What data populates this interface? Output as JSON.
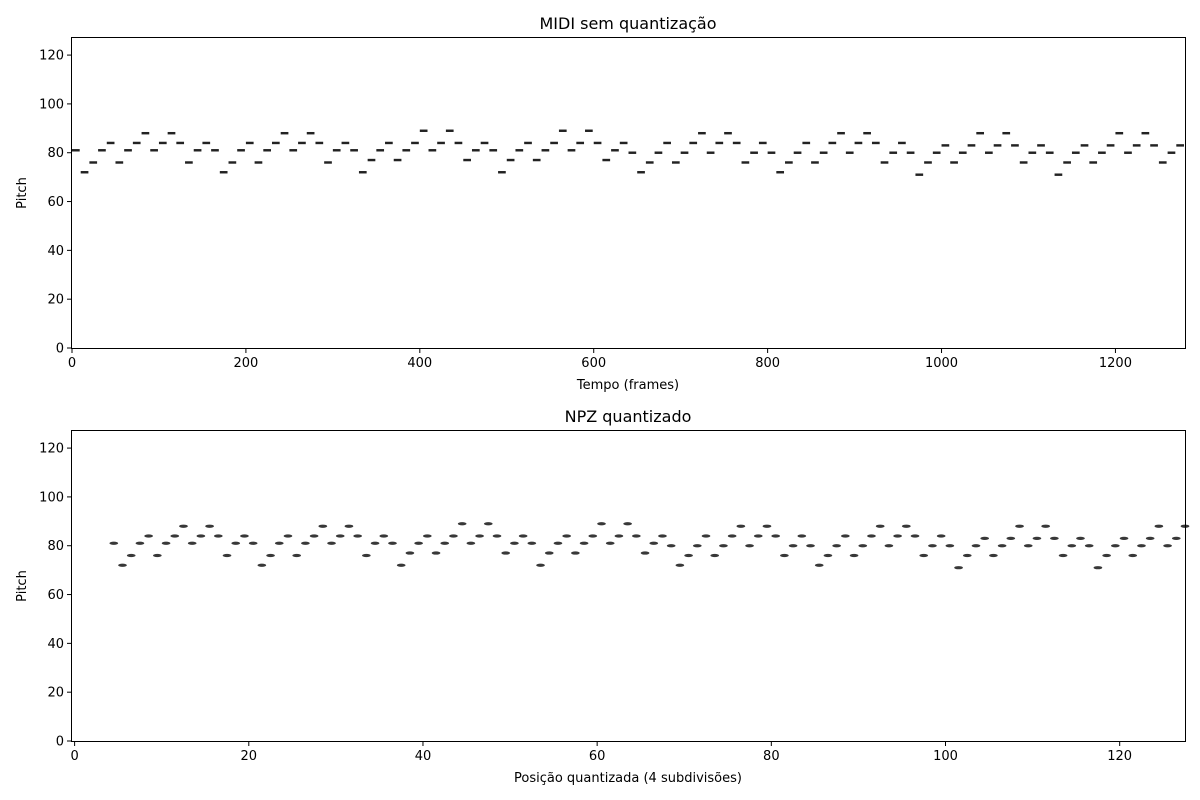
{
  "chart_data": [
    {
      "type": "heatmap",
      "title": "MIDI sem quantização",
      "xlabel": "Tempo (frames)",
      "ylabel": "Pitch",
      "xlim": [
        0,
        1280
      ],
      "ylim": [
        0,
        127
      ],
      "xticks": [
        "0",
        "200",
        "400",
        "600",
        "800",
        "1000",
        "1200"
      ],
      "yticks": [
        "0",
        "20",
        "40",
        "60",
        "80",
        "100",
        "120"
      ],
      "note_length": 10,
      "note_color": "#222222",
      "notes": [
        [
          0,
          81
        ],
        [
          10,
          72
        ],
        [
          20,
          76
        ],
        [
          30,
          81
        ],
        [
          40,
          84
        ],
        [
          50,
          76
        ],
        [
          60,
          81
        ],
        [
          70,
          84
        ],
        [
          80,
          88
        ],
        [
          90,
          81
        ],
        [
          100,
          84
        ],
        [
          110,
          88
        ],
        [
          120,
          84
        ],
        [
          130,
          76
        ],
        [
          140,
          81
        ],
        [
          150,
          84
        ],
        [
          160,
          81
        ],
        [
          170,
          72
        ],
        [
          180,
          76
        ],
        [
          190,
          81
        ],
        [
          200,
          84
        ],
        [
          210,
          76
        ],
        [
          220,
          81
        ],
        [
          230,
          84
        ],
        [
          240,
          88
        ],
        [
          250,
          81
        ],
        [
          260,
          84
        ],
        [
          270,
          88
        ],
        [
          280,
          84
        ],
        [
          290,
          76
        ],
        [
          300,
          81
        ],
        [
          310,
          84
        ],
        [
          320,
          81
        ],
        [
          330,
          72
        ],
        [
          340,
          77
        ],
        [
          350,
          81
        ],
        [
          360,
          84
        ],
        [
          370,
          77
        ],
        [
          380,
          81
        ],
        [
          390,
          84
        ],
        [
          400,
          89
        ],
        [
          410,
          81
        ],
        [
          420,
          84
        ],
        [
          430,
          89
        ],
        [
          440,
          84
        ],
        [
          450,
          77
        ],
        [
          460,
          81
        ],
        [
          470,
          84
        ],
        [
          480,
          81
        ],
        [
          490,
          72
        ],
        [
          500,
          77
        ],
        [
          510,
          81
        ],
        [
          520,
          84
        ],
        [
          530,
          77
        ],
        [
          540,
          81
        ],
        [
          550,
          84
        ],
        [
          560,
          89
        ],
        [
          570,
          81
        ],
        [
          580,
          84
        ],
        [
          590,
          89
        ],
        [
          600,
          84
        ],
        [
          610,
          77
        ],
        [
          620,
          81
        ],
        [
          630,
          84
        ],
        [
          640,
          80
        ],
        [
          650,
          72
        ],
        [
          660,
          76
        ],
        [
          670,
          80
        ],
        [
          680,
          84
        ],
        [
          690,
          76
        ],
        [
          700,
          80
        ],
        [
          710,
          84
        ],
        [
          720,
          88
        ],
        [
          730,
          80
        ],
        [
          740,
          84
        ],
        [
          750,
          88
        ],
        [
          760,
          84
        ],
        [
          770,
          76
        ],
        [
          780,
          80
        ],
        [
          790,
          84
        ],
        [
          800,
          80
        ],
        [
          810,
          72
        ],
        [
          820,
          76
        ],
        [
          830,
          80
        ],
        [
          840,
          84
        ],
        [
          850,
          76
        ],
        [
          860,
          80
        ],
        [
          870,
          84
        ],
        [
          880,
          88
        ],
        [
          890,
          80
        ],
        [
          900,
          84
        ],
        [
          910,
          88
        ],
        [
          920,
          84
        ],
        [
          930,
          76
        ],
        [
          940,
          80
        ],
        [
          950,
          84
        ],
        [
          960,
          80
        ],
        [
          970,
          71
        ],
        [
          980,
          76
        ],
        [
          990,
          80
        ],
        [
          1000,
          83
        ],
        [
          1010,
          76
        ],
        [
          1020,
          80
        ],
        [
          1030,
          83
        ],
        [
          1040,
          88
        ],
        [
          1050,
          80
        ],
        [
          1060,
          83
        ],
        [
          1070,
          88
        ],
        [
          1080,
          83
        ],
        [
          1090,
          76
        ],
        [
          1100,
          80
        ],
        [
          1110,
          83
        ],
        [
          1120,
          80
        ],
        [
          1130,
          71
        ],
        [
          1140,
          76
        ],
        [
          1150,
          80
        ],
        [
          1160,
          83
        ],
        [
          1170,
          76
        ],
        [
          1180,
          80
        ],
        [
          1190,
          83
        ],
        [
          1200,
          88
        ],
        [
          1210,
          80
        ],
        [
          1220,
          83
        ],
        [
          1230,
          88
        ],
        [
          1240,
          83
        ],
        [
          1250,
          76
        ],
        [
          1260,
          80
        ],
        [
          1270,
          83
        ]
      ]
    },
    {
      "type": "heatmap",
      "title": "NPZ quantizado",
      "xlabel": "Posição quantizada (4 subdivisões)",
      "ylabel": "Pitch",
      "xlim": [
        -0.3,
        127.5
      ],
      "ylim": [
        0,
        127
      ],
      "xticks": [
        "0",
        "20",
        "40",
        "60",
        "80",
        "100",
        "120"
      ],
      "yticks": [
        "0",
        "20",
        "40",
        "60",
        "80",
        "100",
        "120"
      ],
      "note_length": 1,
      "note_color": "#222222",
      "notes": [
        [
          4,
          81
        ],
        [
          5,
          72
        ],
        [
          6,
          76
        ],
        [
          7,
          81
        ],
        [
          8,
          84
        ],
        [
          9,
          76
        ],
        [
          10,
          81
        ],
        [
          11,
          84
        ],
        [
          12,
          88
        ],
        [
          13,
          81
        ],
        [
          14,
          84
        ],
        [
          15,
          88
        ],
        [
          16,
          84
        ],
        [
          17,
          76
        ],
        [
          18,
          81
        ],
        [
          19,
          84
        ],
        [
          20,
          81
        ],
        [
          21,
          72
        ],
        [
          22,
          76
        ],
        [
          23,
          81
        ],
        [
          24,
          84
        ],
        [
          25,
          76
        ],
        [
          26,
          81
        ],
        [
          27,
          84
        ],
        [
          28,
          88
        ],
        [
          29,
          81
        ],
        [
          30,
          84
        ],
        [
          31,
          88
        ],
        [
          32,
          84
        ],
        [
          33,
          76
        ],
        [
          34,
          81
        ],
        [
          35,
          84
        ],
        [
          36,
          81
        ],
        [
          37,
          72
        ],
        [
          38,
          77
        ],
        [
          39,
          81
        ],
        [
          40,
          84
        ],
        [
          41,
          77
        ],
        [
          42,
          81
        ],
        [
          43,
          84
        ],
        [
          44,
          89
        ],
        [
          45,
          81
        ],
        [
          46,
          84
        ],
        [
          47,
          89
        ],
        [
          48,
          84
        ],
        [
          49,
          77
        ],
        [
          50,
          81
        ],
        [
          51,
          84
        ],
        [
          52,
          81
        ],
        [
          53,
          72
        ],
        [
          54,
          77
        ],
        [
          55,
          81
        ],
        [
          56,
          84
        ],
        [
          57,
          77
        ],
        [
          58,
          81
        ],
        [
          59,
          84
        ],
        [
          60,
          89
        ],
        [
          61,
          81
        ],
        [
          62,
          84
        ],
        [
          63,
          89
        ],
        [
          64,
          84
        ],
        [
          65,
          77
        ],
        [
          66,
          81
        ],
        [
          67,
          84
        ],
        [
          68,
          80
        ],
        [
          69,
          72
        ],
        [
          70,
          76
        ],
        [
          71,
          80
        ],
        [
          72,
          84
        ],
        [
          73,
          76
        ],
        [
          74,
          80
        ],
        [
          75,
          84
        ],
        [
          76,
          88
        ],
        [
          77,
          80
        ],
        [
          78,
          84
        ],
        [
          79,
          88
        ],
        [
          80,
          84
        ],
        [
          81,
          76
        ],
        [
          82,
          80
        ],
        [
          83,
          84
        ],
        [
          84,
          80
        ],
        [
          85,
          72
        ],
        [
          86,
          76
        ],
        [
          87,
          80
        ],
        [
          88,
          84
        ],
        [
          89,
          76
        ],
        [
          90,
          80
        ],
        [
          91,
          84
        ],
        [
          92,
          88
        ],
        [
          93,
          80
        ],
        [
          94,
          84
        ],
        [
          95,
          88
        ],
        [
          96,
          84
        ],
        [
          97,
          76
        ],
        [
          98,
          80
        ],
        [
          99,
          84
        ],
        [
          100,
          80
        ],
        [
          101,
          71
        ],
        [
          102,
          76
        ],
        [
          103,
          80
        ],
        [
          104,
          83
        ],
        [
          105,
          76
        ],
        [
          106,
          80
        ],
        [
          107,
          83
        ],
        [
          108,
          88
        ],
        [
          109,
          80
        ],
        [
          110,
          83
        ],
        [
          111,
          88
        ],
        [
          112,
          83
        ],
        [
          113,
          76
        ],
        [
          114,
          80
        ],
        [
          115,
          83
        ],
        [
          116,
          80
        ],
        [
          117,
          71
        ],
        [
          118,
          76
        ],
        [
          119,
          80
        ],
        [
          120,
          83
        ],
        [
          121,
          76
        ],
        [
          122,
          80
        ],
        [
          123,
          83
        ],
        [
          124,
          88
        ],
        [
          125,
          80
        ],
        [
          126,
          83
        ],
        [
          127,
          88
        ]
      ]
    }
  ]
}
